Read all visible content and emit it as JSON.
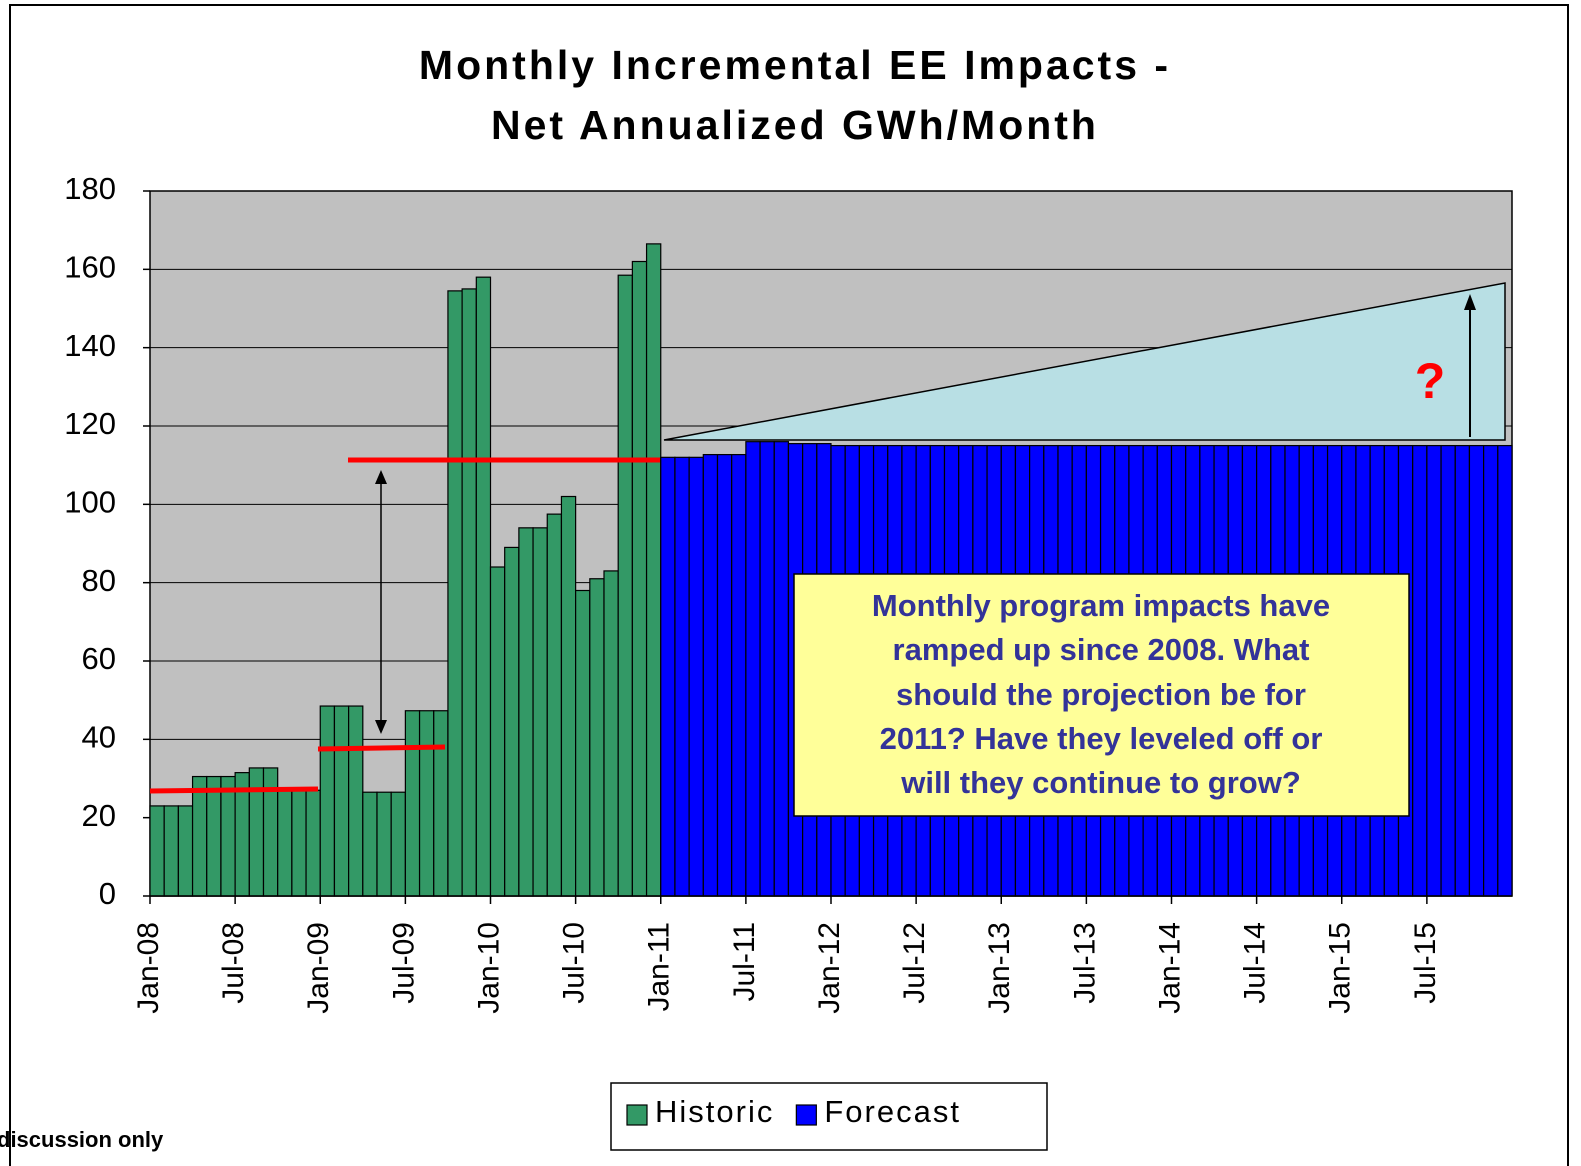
{
  "chart_data": {
    "type": "bar",
    "title": [
      "Monthly Incremental EE Impacts -",
      "Net Annualized GWh/Month"
    ],
    "categories": [
      "Jan-08",
      null,
      null,
      null,
      null,
      null,
      "Jul-08",
      null,
      null,
      null,
      null,
      null,
      "Jan-09",
      null,
      null,
      null,
      null,
      null,
      "Jul-09",
      null,
      null,
      null,
      null,
      null,
      "Jan-10",
      null,
      null,
      null,
      null,
      null,
      "Jul-10",
      null,
      null,
      null,
      null,
      null,
      "Jan-11",
      null,
      null,
      null,
      null,
      null,
      "Jul-11",
      null,
      null,
      null,
      null,
      null,
      "Jan-12",
      null,
      null,
      null,
      null,
      null,
      "Jul-12",
      null,
      null,
      null,
      null,
      null,
      "Jan-13",
      null,
      null,
      null,
      null,
      null,
      "Jul-13",
      null,
      null,
      null,
      null,
      null,
      "Jan-14",
      null,
      null,
      null,
      null,
      null,
      "Jul-14",
      null,
      null,
      null,
      null,
      null,
      "Jan-15",
      null,
      null,
      null,
      null,
      null,
      "Jul-15",
      null,
      null,
      null,
      null,
      null
    ],
    "series": [
      {
        "name": "Historic",
        "color": "#339966",
        "values": [
          23,
          23,
          23,
          30.5,
          30.5,
          30.5,
          31.5,
          32.7,
          32.7,
          27,
          27,
          27,
          48.5,
          48.5,
          48.5,
          26.5,
          26.5,
          26.5,
          47.3,
          47.3,
          47.3,
          154.5,
          155,
          158,
          84,
          89,
          94,
          94,
          97.5,
          102,
          78,
          81,
          83,
          158.5,
          162,
          166.5,
          null,
          null,
          null,
          null,
          null,
          null,
          null,
          null,
          null,
          null,
          null,
          null,
          null,
          null,
          null,
          null,
          null,
          null,
          null,
          null,
          null,
          null,
          null,
          null,
          null,
          null,
          null,
          null,
          null,
          null,
          null,
          null,
          null,
          null,
          null,
          null,
          null,
          null,
          null,
          null,
          null,
          null,
          null,
          null,
          null,
          null,
          null,
          null,
          null,
          null,
          null,
          null,
          null,
          null,
          null,
          null,
          null,
          null,
          null,
          null
        ]
      },
      {
        "name": "Forecast",
        "color": "#0000ff",
        "values": [
          null,
          null,
          null,
          null,
          null,
          null,
          null,
          null,
          null,
          null,
          null,
          null,
          null,
          null,
          null,
          null,
          null,
          null,
          null,
          null,
          null,
          null,
          null,
          null,
          null,
          null,
          null,
          null,
          null,
          null,
          null,
          null,
          null,
          null,
          null,
          null,
          112,
          112,
          112,
          112.7,
          112.7,
          112.7,
          116,
          116,
          116,
          115.5,
          115.5,
          115.5,
          115,
          115,
          115,
          115,
          115,
          115,
          115,
          115,
          115,
          115,
          115,
          115,
          115,
          115,
          115,
          115,
          115,
          115,
          115,
          115,
          115,
          115,
          115,
          115,
          115,
          115,
          115,
          115,
          115,
          115,
          115,
          115,
          115,
          115,
          115,
          115,
          115,
          115,
          115,
          115,
          115,
          115,
          115,
          115,
          115,
          115,
          115,
          115
        ]
      }
    ],
    "ylim": [
      0,
      180
    ],
    "yticks": [
      0,
      20,
      40,
      60,
      80,
      100,
      120,
      140,
      160,
      180
    ],
    "grid": true,
    "annotations": {
      "callout": [
        "Monthly program impacts have",
        "ramped up since 2008. What",
        "should the projection be for",
        "2011? Have they leveled off or",
        "will they continue to grow?"
      ],
      "question": "?"
    },
    "footer": "discussion only"
  }
}
